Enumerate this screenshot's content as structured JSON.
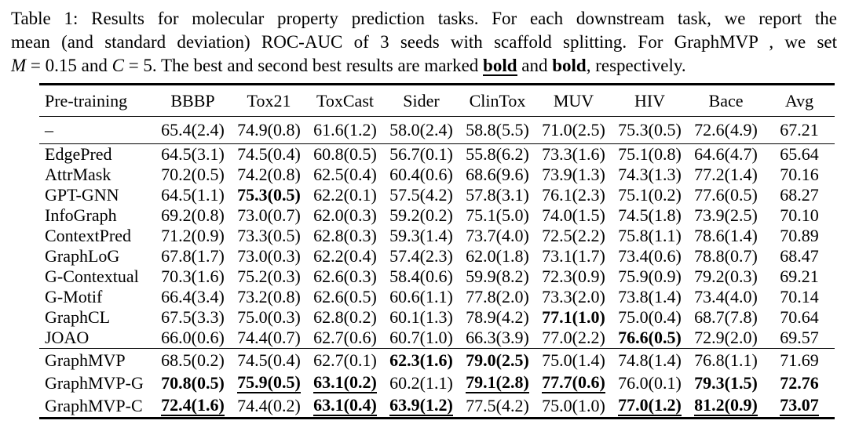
{
  "caption": {
    "line1": "Table 1: Results for molecular property prediction tasks. For each downstream task, we report the",
    "line2": "mean (and standard deviation) ROC-AUC of 3 seeds with scaffold splitting. For GraphMVP , we set",
    "line3": {
      "var1": "M",
      "seg1": " = 0.15 and ",
      "var2": "C",
      "seg2": " = 5. The best and second best results are marked ",
      "best_label": "bold",
      "seg3": " and ",
      "second_label": "bold",
      "seg4": ", respectively."
    }
  },
  "table": {
    "columns": [
      "Pre-training",
      "BBBP",
      "Tox21",
      "ToxCast",
      "Sider",
      "ClinTox",
      "MUV",
      "HIV",
      "Bace",
      "Avg"
    ],
    "emphasis_legend": {
      "best": "bold+underline",
      "second_best": "bold"
    },
    "sections": [
      {
        "name": "baseline",
        "rows": [
          {
            "name": "–",
            "cells": [
              [
                "65.4(2.4)",
                "p"
              ],
              [
                "74.9(0.8)",
                "p"
              ],
              [
                "61.6(1.2)",
                "p"
              ],
              [
                "58.0(2.4)",
                "p"
              ],
              [
                "58.8(5.5)",
                "p"
              ],
              [
                "71.0(2.5)",
                "p"
              ],
              [
                "75.3(0.5)",
                "p"
              ],
              [
                "72.6(4.9)",
                "p"
              ],
              [
                "67.21",
                "p"
              ]
            ]
          }
        ]
      },
      {
        "name": "pretraining-baselines",
        "rows": [
          {
            "name": "EdgePred",
            "cells": [
              [
                "64.5(3.1)",
                "p"
              ],
              [
                "74.5(0.4)",
                "p"
              ],
              [
                "60.8(0.5)",
                "p"
              ],
              [
                "56.7(0.1)",
                "p"
              ],
              [
                "55.8(6.2)",
                "p"
              ],
              [
                "73.3(1.6)",
                "p"
              ],
              [
                "75.1(0.8)",
                "p"
              ],
              [
                "64.6(4.7)",
                "p"
              ],
              [
                "65.64",
                "p"
              ]
            ]
          },
          {
            "name": "AttrMask",
            "cells": [
              [
                "70.2(0.5)",
                "p"
              ],
              [
                "74.2(0.8)",
                "p"
              ],
              [
                "62.5(0.4)",
                "p"
              ],
              [
                "60.4(0.6)",
                "p"
              ],
              [
                "68.6(9.6)",
                "p"
              ],
              [
                "73.9(1.3)",
                "p"
              ],
              [
                "74.3(1.3)",
                "p"
              ],
              [
                "77.2(1.4)",
                "p"
              ],
              [
                "70.16",
                "p"
              ]
            ]
          },
          {
            "name": "GPT-GNN",
            "cells": [
              [
                "64.5(1.1)",
                "p"
              ],
              [
                "75.3(0.5)",
                "b"
              ],
              [
                "62.2(0.1)",
                "p"
              ],
              [
                "57.5(4.2)",
                "p"
              ],
              [
                "57.8(3.1)",
                "p"
              ],
              [
                "76.1(2.3)",
                "p"
              ],
              [
                "75.1(0.2)",
                "p"
              ],
              [
                "77.6(0.5)",
                "p"
              ],
              [
                "68.27",
                "p"
              ]
            ]
          },
          {
            "name": "InfoGraph",
            "cells": [
              [
                "69.2(0.8)",
                "p"
              ],
              [
                "73.0(0.7)",
                "p"
              ],
              [
                "62.0(0.3)",
                "p"
              ],
              [
                "59.2(0.2)",
                "p"
              ],
              [
                "75.1(5.0)",
                "p"
              ],
              [
                "74.0(1.5)",
                "p"
              ],
              [
                "74.5(1.8)",
                "p"
              ],
              [
                "73.9(2.5)",
                "p"
              ],
              [
                "70.10",
                "p"
              ]
            ]
          },
          {
            "name": "ContextPred",
            "cells": [
              [
                "71.2(0.9)",
                "p"
              ],
              [
                "73.3(0.5)",
                "p"
              ],
              [
                "62.8(0.3)",
                "p"
              ],
              [
                "59.3(1.4)",
                "p"
              ],
              [
                "73.7(4.0)",
                "p"
              ],
              [
                "72.5(2.2)",
                "p"
              ],
              [
                "75.8(1.1)",
                "p"
              ],
              [
                "78.6(1.4)",
                "p"
              ],
              [
                "70.89",
                "p"
              ]
            ]
          },
          {
            "name": "GraphLoG",
            "cells": [
              [
                "67.8(1.7)",
                "p"
              ],
              [
                "73.0(0.3)",
                "p"
              ],
              [
                "62.2(0.4)",
                "p"
              ],
              [
                "57.4(2.3)",
                "p"
              ],
              [
                "62.0(1.8)",
                "p"
              ],
              [
                "73.1(1.7)",
                "p"
              ],
              [
                "73.4(0.6)",
                "p"
              ],
              [
                "78.8(0.7)",
                "p"
              ],
              [
                "68.47",
                "p"
              ]
            ]
          },
          {
            "name": "G-Contextual",
            "cells": [
              [
                "70.3(1.6)",
                "p"
              ],
              [
                "75.2(0.3)",
                "p"
              ],
              [
                "62.6(0.3)",
                "p"
              ],
              [
                "58.4(0.6)",
                "p"
              ],
              [
                "59.9(8.2)",
                "p"
              ],
              [
                "72.3(0.9)",
                "p"
              ],
              [
                "75.9(0.9)",
                "p"
              ],
              [
                "79.2(0.3)",
                "p"
              ],
              [
                "69.21",
                "p"
              ]
            ]
          },
          {
            "name": "G-Motif",
            "cells": [
              [
                "66.4(3.4)",
                "p"
              ],
              [
                "73.2(0.8)",
                "p"
              ],
              [
                "62.6(0.5)",
                "p"
              ],
              [
                "60.6(1.1)",
                "p"
              ],
              [
                "77.8(2.0)",
                "p"
              ],
              [
                "73.3(2.0)",
                "p"
              ],
              [
                "73.8(1.4)",
                "p"
              ],
              [
                "73.4(4.0)",
                "p"
              ],
              [
                "70.14",
                "p"
              ]
            ]
          },
          {
            "name": "GraphCL",
            "cells": [
              [
                "67.5(3.3)",
                "p"
              ],
              [
                "75.0(0.3)",
                "p"
              ],
              [
                "62.8(0.2)",
                "p"
              ],
              [
                "60.1(1.3)",
                "p"
              ],
              [
                "78.9(4.2)",
                "p"
              ],
              [
                "77.1(1.0)",
                "b"
              ],
              [
                "75.0(0.4)",
                "p"
              ],
              [
                "68.7(7.8)",
                "p"
              ],
              [
                "70.64",
                "p"
              ]
            ]
          },
          {
            "name": "JOAO",
            "cells": [
              [
                "66.0(0.6)",
                "p"
              ],
              [
                "74.4(0.7)",
                "p"
              ],
              [
                "62.7(0.6)",
                "p"
              ],
              [
                "60.7(1.0)",
                "p"
              ],
              [
                "66.3(3.9)",
                "p"
              ],
              [
                "77.0(2.2)",
                "p"
              ],
              [
                "76.6(0.5)",
                "b"
              ],
              [
                "72.9(2.0)",
                "p"
              ],
              [
                "69.57",
                "p"
              ]
            ]
          }
        ]
      },
      {
        "name": "graphmvp",
        "rows": [
          {
            "name": "GraphMVP",
            "cells": [
              [
                "68.5(0.2)",
                "p"
              ],
              [
                "74.5(0.4)",
                "p"
              ],
              [
                "62.7(0.1)",
                "p"
              ],
              [
                "62.3(1.6)",
                "b"
              ],
              [
                "79.0(2.5)",
                "b"
              ],
              [
                "75.0(1.4)",
                "p"
              ],
              [
                "74.8(1.4)",
                "p"
              ],
              [
                "76.8(1.1)",
                "p"
              ],
              [
                "71.69",
                "p"
              ]
            ]
          },
          {
            "name": "GraphMVP-G",
            "cells": [
              [
                "70.8(0.5)",
                "b"
              ],
              [
                "75.9(0.5)",
                "u"
              ],
              [
                "63.1(0.2)",
                "u"
              ],
              [
                "60.2(1.1)",
                "p"
              ],
              [
                "79.1(2.8)",
                "u"
              ],
              [
                "77.7(0.6)",
                "u"
              ],
              [
                "76.0(0.1)",
                "p"
              ],
              [
                "79.3(1.5)",
                "b"
              ],
              [
                "72.76",
                "b"
              ]
            ]
          },
          {
            "name": "GraphMVP-C",
            "cells": [
              [
                "72.4(1.6)",
                "u"
              ],
              [
                "74.4(0.2)",
                "p"
              ],
              [
                "63.1(0.4)",
                "u"
              ],
              [
                "63.9(1.2)",
                "u"
              ],
              [
                "77.5(4.2)",
                "p"
              ],
              [
                "75.0(1.0)",
                "p"
              ],
              [
                "77.0(1.2)",
                "u"
              ],
              [
                "81.2(0.9)",
                "u"
              ],
              [
                "73.07",
                "u"
              ]
            ]
          }
        ]
      }
    ]
  }
}
